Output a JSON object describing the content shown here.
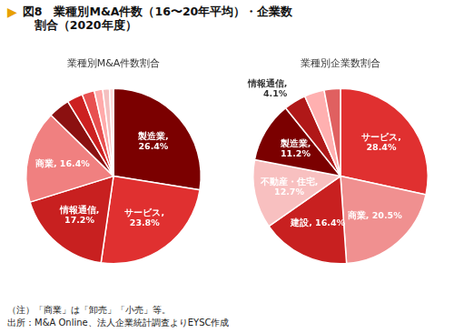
{
  "title": [
    "▶",
    "図8　業種別M&A件数（16〜20年平均）・企業数",
    "　割合（2020年度）"
  ],
  "annotations": [
    "（注）「商業」は「卸売」「小売」等。",
    "出所：M&A Online、法人企業統計調査よりEYSC作成"
  ],
  "chart_data": [
    {
      "type": "pie",
      "title": "業種別M&A件数割合",
      "values": [
        26.4,
        23.8,
        17.2,
        16.4,
        3.8,
        2.8,
        2.2,
        1.5,
        1.2,
        0.7
      ],
      "colors": [
        "#7B0000",
        "#E03030",
        "#C82020",
        "#F08080",
        "#8B1010",
        "#CC2020",
        "#E85050",
        "#FFAAAA",
        "#F4C0C0",
        "#FFD8D8"
      ],
      "data_labels": true,
      "value_labels": [
        "製造業,\n26.4%",
        "サービス,\n23.8%",
        "情報通信,\n17.2%",
        "商業, 16.4%",
        null,
        null,
        null,
        null,
        null,
        null
      ]
    },
    {
      "type": "pie",
      "title": "業種別企業数割合",
      "values": [
        28.4,
        20.5,
        16.4,
        12.7,
        11.2,
        4.1,
        3.7,
        3.0
      ],
      "colors": [
        "#E03030",
        "#F09090",
        "#C82020",
        "#F8C0C0",
        "#7B0000",
        "#B01818",
        "#FFB0B0",
        "#E06060"
      ],
      "data_labels": true,
      "value_labels": [
        "サービス,\n28.4%",
        "商業, 20.5%",
        "建設, 16.4%",
        "不動産・住宅,\n12.7%",
        "製造業,\n11.2%",
        "情報通信,\n4.1%",
        null,
        null
      ]
    }
  ]
}
